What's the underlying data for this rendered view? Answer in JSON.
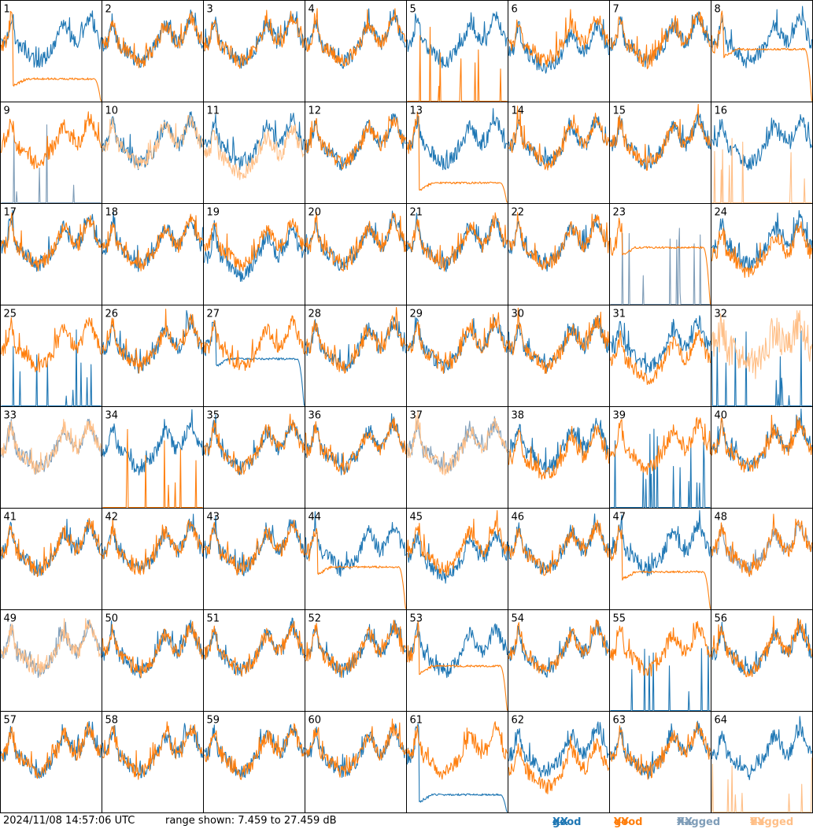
{
  "footer": {
    "timestamp": "2024/11/08 14:57:06 UTC",
    "range_text": "range shown: 7.459 to 27.459 dB",
    "legend": {
      "good_prefix": "good",
      "flagged_prefix": "flagged",
      "xx": "XX",
      "yy": "YY"
    }
  },
  "colors": {
    "good_xx": "#1f77b4",
    "good_yy": "#ff7f0e",
    "flagged_xx": "#7f9db8",
    "flagged_yy": "#ffbf87",
    "grid": "#000000"
  },
  "chart_data": {
    "type": "line",
    "layout": "small-multiples 8x8",
    "ylim": [
      7.459,
      27.459
    ],
    "yunit": "dB",
    "panels": [
      {
        "label": "1",
        "xx": "good",
        "yy": "good",
        "xx_shape": "normal",
        "yy_shape": "rolloff",
        "yy_level": 12
      },
      {
        "label": "2",
        "xx": "good",
        "yy": "good"
      },
      {
        "label": "3",
        "xx": "good",
        "yy": "good"
      },
      {
        "label": "4",
        "xx": "good",
        "yy": "good"
      },
      {
        "label": "5",
        "xx": "good",
        "yy": "good",
        "yy_shape": "spikes"
      },
      {
        "label": "6",
        "xx": "good",
        "yy": "good",
        "xx_offset": -1.5
      },
      {
        "label": "7",
        "xx": "good",
        "yy": "good"
      },
      {
        "label": "8",
        "xx": "good",
        "yy": "good",
        "yy_shape": "rolloff",
        "yy_level": 18
      },
      {
        "label": "9",
        "xx": "flagged",
        "yy": "good",
        "xx_shape": "spikes"
      },
      {
        "label": "10",
        "xx": "good",
        "yy": "flagged"
      },
      {
        "label": "11",
        "xx": "good",
        "yy": "flagged",
        "yy_offset": -2
      },
      {
        "label": "12",
        "xx": "good",
        "yy": "good"
      },
      {
        "label": "13",
        "xx": "good",
        "yy": "good",
        "yy_shape": "rolloff",
        "yy_level": 11.5
      },
      {
        "label": "14",
        "xx": "good",
        "yy": "good"
      },
      {
        "label": "15",
        "xx": "good",
        "yy": "good"
      },
      {
        "label": "16",
        "xx": "good",
        "yy": "flagged",
        "yy_shape": "spikes"
      },
      {
        "label": "17",
        "xx": "good",
        "yy": "good"
      },
      {
        "label": "18",
        "xx": "good",
        "yy": "good"
      },
      {
        "label": "19",
        "xx": "good",
        "yy": "good",
        "xx_offset": -2
      },
      {
        "label": "20",
        "xx": "good",
        "yy": "good"
      },
      {
        "label": "21",
        "xx": "good",
        "yy": "good"
      },
      {
        "label": "22",
        "xx": "good",
        "yy": "good"
      },
      {
        "label": "23",
        "xx": "flagged",
        "yy": "good",
        "xx_shape": "spikes",
        "yy_shape": "rolloff",
        "yy_level": 19
      },
      {
        "label": "24",
        "xx": "good",
        "yy": "good",
        "yy_offset": -1.5
      },
      {
        "label": "25",
        "xx": "good",
        "yy": "good",
        "xx_shape": "spikes"
      },
      {
        "label": "26",
        "xx": "good",
        "yy": "good"
      },
      {
        "label": "27",
        "xx": "good",
        "yy": "good",
        "xx_shape": "rolloff",
        "xx_level": 17
      },
      {
        "label": "28",
        "xx": "good",
        "yy": "good"
      },
      {
        "label": "29",
        "xx": "good",
        "yy": "good"
      },
      {
        "label": "30",
        "xx": "good",
        "yy": "good"
      },
      {
        "label": "31",
        "xx": "good",
        "yy": "good",
        "yy_offset": -2.5
      },
      {
        "label": "32",
        "xx": "good",
        "yy": "flagged",
        "xx_shape": "spikes",
        "yy_shape": "noisy"
      },
      {
        "label": "33",
        "xx": "flagged",
        "yy": "flagged"
      },
      {
        "label": "34",
        "xx": "good",
        "yy": "good",
        "yy_shape": "spikes"
      },
      {
        "label": "35",
        "xx": "good",
        "yy": "good"
      },
      {
        "label": "36",
        "xx": "good",
        "yy": "good"
      },
      {
        "label": "37",
        "xx": "flagged",
        "yy": "flagged"
      },
      {
        "label": "38",
        "xx": "good",
        "yy": "good",
        "yy_offset": -1.5
      },
      {
        "label": "39",
        "xx": "good",
        "yy": "good",
        "xx_shape": "spikes"
      },
      {
        "label": "40",
        "xx": "good",
        "yy": "good"
      },
      {
        "label": "41",
        "xx": "good",
        "yy": "good"
      },
      {
        "label": "42",
        "xx": "good",
        "yy": "good"
      },
      {
        "label": "43",
        "xx": "good",
        "yy": "good"
      },
      {
        "label": "44",
        "xx": "good",
        "yy": "good",
        "yy_shape": "rolloff",
        "yy_level": 16
      },
      {
        "label": "45",
        "xx": "good",
        "yy": "good",
        "xx_offset": -1.5
      },
      {
        "label": "46",
        "xx": "good",
        "yy": "good"
      },
      {
        "label": "47",
        "xx": "good",
        "yy": "good",
        "yy_shape": "rolloff",
        "yy_level": 15
      },
      {
        "label": "48",
        "xx": "flagged",
        "yy": "good"
      },
      {
        "label": "49",
        "xx": "flagged",
        "yy": "flagged"
      },
      {
        "label": "50",
        "xx": "good",
        "yy": "good"
      },
      {
        "label": "51",
        "xx": "good",
        "yy": "good"
      },
      {
        "label": "52",
        "xx": "good",
        "yy": "good"
      },
      {
        "label": "53",
        "xx": "good",
        "yy": "good",
        "yy_shape": "rolloff",
        "yy_level": 16.5
      },
      {
        "label": "54",
        "xx": "good",
        "yy": "good"
      },
      {
        "label": "55",
        "xx": "good",
        "yy": "good",
        "xx_shape": "spikes"
      },
      {
        "label": "56",
        "xx": "good",
        "yy": "good"
      },
      {
        "label": "57",
        "xx": "good",
        "yy": "good"
      },
      {
        "label": "58",
        "xx": "good",
        "yy": "good"
      },
      {
        "label": "59",
        "xx": "good",
        "yy": "good"
      },
      {
        "label": "60",
        "xx": "good",
        "yy": "good"
      },
      {
        "label": "61",
        "xx": "good",
        "yy": "good",
        "xx_shape": "rolloff",
        "xx_level": 11
      },
      {
        "label": "62",
        "xx": "good",
        "yy": "good",
        "yy_offset": -3
      },
      {
        "label": "63",
        "xx": "good",
        "yy": "good"
      },
      {
        "label": "64",
        "xx": "good",
        "yy": "flagged",
        "yy_shape": "spikes"
      }
    ]
  }
}
